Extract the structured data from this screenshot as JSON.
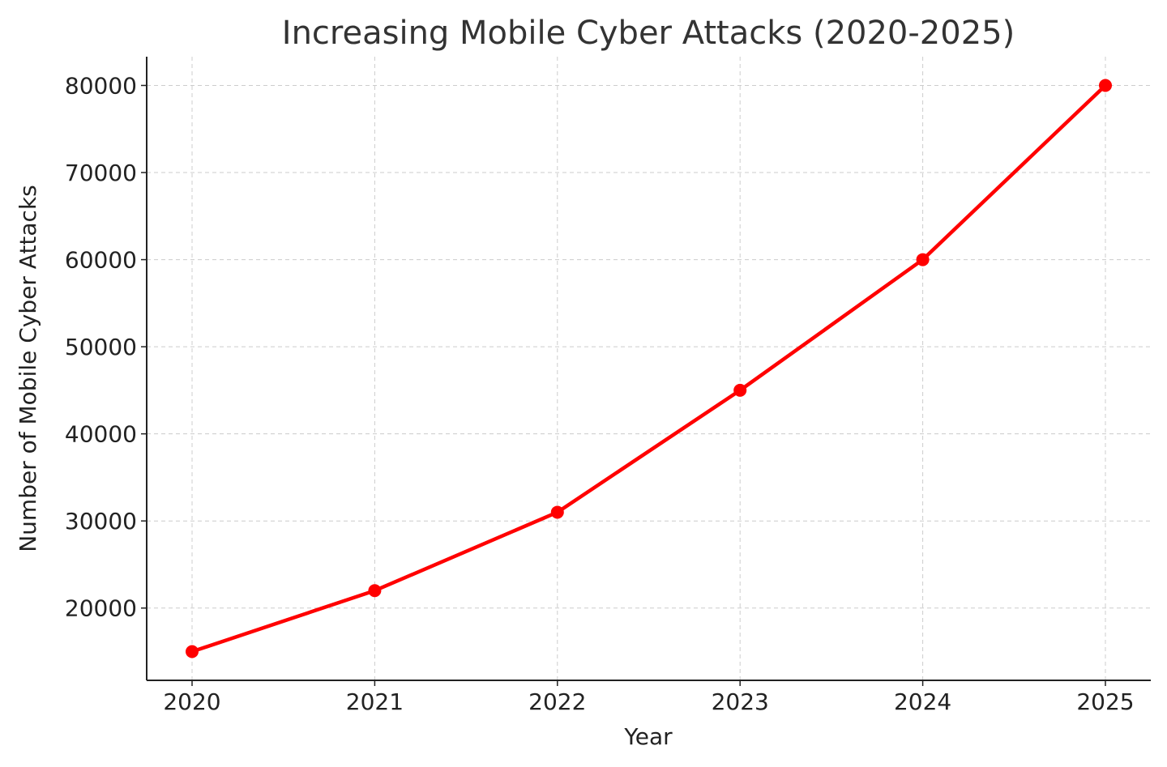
{
  "chart_data": {
    "type": "line",
    "title": "Increasing Mobile Cyber Attacks (2020-2025)",
    "xlabel": "Year",
    "ylabel": "Number of Mobile Cyber Attacks",
    "categories": [
      "2020",
      "2021",
      "2022",
      "2023",
      "2024",
      "2025"
    ],
    "series": [
      {
        "name": "Mobile Cyber Attacks",
        "values": [
          15000,
          22000,
          31000,
          45000,
          60000,
          80000
        ],
        "color": "#ff0000"
      }
    ],
    "yticks": [
      20000,
      30000,
      40000,
      50000,
      60000,
      70000,
      80000
    ],
    "ylim": [
      11700,
      83300
    ],
    "grid": true,
    "legend": "none"
  }
}
